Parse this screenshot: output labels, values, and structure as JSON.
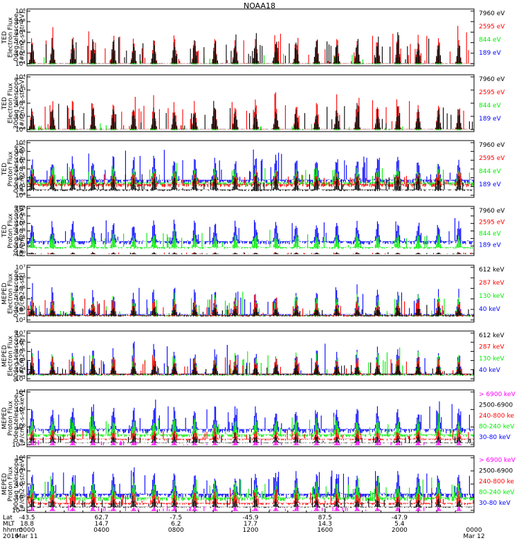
{
  "title": "NOAA18",
  "colors": {
    "black": "#000000",
    "red": "#ff0000",
    "green": "#00ee00",
    "blue": "#0000ff",
    "magenta": "#ff00ff"
  },
  "x_axis": {
    "row_labels": [
      "Lat",
      "MLT",
      "hhmm",
      "2016"
    ],
    "columns": [
      {
        "lat": "-43.5",
        "mlt": "18.8",
        "hhmm": "0000",
        "date": "Mar 11"
      },
      {
        "lat": "62.7",
        "mlt": "14.7",
        "hhmm": "0400",
        "date": ""
      },
      {
        "lat": "-7.5",
        "mlt": "6.2",
        "hhmm": "0800",
        "date": ""
      },
      {
        "lat": "-45.9",
        "mlt": "17.7",
        "hhmm": "1200",
        "date": ""
      },
      {
        "lat": "87.5",
        "mlt": "14.3",
        "hhmm": "1600",
        "date": ""
      },
      {
        "lat": "-47.9",
        "mlt": "5.4",
        "hhmm": "2000",
        "date": ""
      },
      {
        "lat": "",
        "mlt": "",
        "hhmm": "0000",
        "date": "Mar 12"
      }
    ]
  },
  "chart_data": [
    {
      "type": "line",
      "ylabel": [
        "TED",
        "Electron Flux",
        "0deg telescope",
        "[#/cm2-s-str-eV]"
      ],
      "yticks": [
        "10¹",
        "10²",
        "10³",
        "10⁴",
        "10⁵",
        "10⁶"
      ],
      "legend": [
        {
          "text": "7960 eV",
          "color": "#000000"
        },
        {
          "text": "2595 eV",
          "color": "#ff0000"
        },
        {
          "text": "844 eV",
          "color": "#00ee00"
        },
        {
          "text": "189 eV",
          "color": "#0000ff"
        }
      ],
      "series": [
        {
          "name": "7960 eV",
          "base": 0.02,
          "peak": 0.62
        },
        {
          "name": "2595 eV",
          "base": 0.02,
          "peak": 0.72
        },
        {
          "name": "844 eV",
          "base": 0.0,
          "peak": 0.2
        },
        {
          "name": "189 eV",
          "base": 0.0,
          "peak": 0.0
        }
      ]
    },
    {
      "type": "line",
      "ylabel": [
        "TED",
        "Electron Flux",
        "30deg telescope",
        "[#/cm2-s-str-eV]"
      ],
      "yticks": [
        "10⁰",
        "10¹",
        "10²",
        "10³",
        "10⁴"
      ],
      "legend": [
        {
          "text": "7960 eV",
          "color": "#000000"
        },
        {
          "text": "2595 eV",
          "color": "#ff0000"
        },
        {
          "text": "844 eV",
          "color": "#00ee00"
        },
        {
          "text": "189 eV",
          "color": "#0000ff"
        }
      ],
      "series": [
        {
          "name": "7960 eV",
          "base": 0.02,
          "peak": 0.55
        },
        {
          "name": "2595 eV",
          "base": 0.02,
          "peak": 0.72
        },
        {
          "name": "844 eV",
          "base": 0.0,
          "peak": 0.15
        },
        {
          "name": "189 eV",
          "base": 0.0,
          "peak": 0.0
        }
      ]
    },
    {
      "type": "line",
      "ylabel": [
        "TED",
        "Proton Flux",
        "0deg telescope",
        "[#/cm2-s-str-eV]"
      ],
      "yticks": [
        "10⁰",
        "10¹",
        "10²",
        "10³",
        "10⁴",
        "10⁵",
        "10⁶"
      ],
      "legend": [
        {
          "text": "7960 eV",
          "color": "#000000"
        },
        {
          "text": "2595 eV",
          "color": "#ff0000"
        },
        {
          "text": "844 eV",
          "color": "#00ee00"
        },
        {
          "text": "189 eV",
          "color": "#0000ff"
        }
      ],
      "series": [
        {
          "name": "7960 eV",
          "base": 0.12,
          "peak": 0.45
        },
        {
          "name": "2595 eV",
          "base": 0.22,
          "peak": 0.5
        },
        {
          "name": "844 eV",
          "base": 0.25,
          "peak": 0.62
        },
        {
          "name": "189 eV",
          "base": 0.3,
          "peak": 0.9
        }
      ]
    },
    {
      "type": "line",
      "ylabel": [
        "TED",
        "Proton Flux",
        "30deg telescope",
        "[#/cm2-s-str-eV]"
      ],
      "yticks": [
        "10⁰",
        "10¹",
        "10²",
        "10³",
        "10⁴",
        "10⁵",
        "10⁶"
      ],
      "legend": [
        {
          "text": "7960 eV",
          "color": "#000000"
        },
        {
          "text": "2595 eV",
          "color": "#ff0000"
        },
        {
          "text": "844 eV",
          "color": "#00ee00"
        },
        {
          "text": "189 eV",
          "color": "#0000ff"
        }
      ],
      "series": [
        {
          "name": "7960 eV",
          "base": 0.0,
          "peak": 0.05
        },
        {
          "name": "2595 eV",
          "base": 0.0,
          "peak": 0.05
        },
        {
          "name": "844 eV",
          "base": 0.15,
          "peak": 0.55
        },
        {
          "name": "189 eV",
          "base": 0.28,
          "peak": 0.88
        }
      ]
    },
    {
      "type": "line",
      "ylabel": [
        "MEPED",
        "Electron Flux",
        "0deg telescope",
        "[#/cm2-s-str]"
      ],
      "yticks": [
        "10²",
        "10³",
        "10⁴",
        "10⁵",
        "10⁶",
        "10⁷"
      ],
      "legend": [
        {
          "text": "612 keV",
          "color": "#000000"
        },
        {
          "text": "287 keV",
          "color": "#ff0000"
        },
        {
          "text": "130 keV",
          "color": "#00ee00"
        },
        {
          "text": "40 keV",
          "color": "#0000ff"
        }
      ],
      "series": [
        {
          "name": "612 keV",
          "base": 0.1,
          "peak": 0.3
        },
        {
          "name": "287 keV",
          "base": 0.1,
          "peak": 0.48
        },
        {
          "name": "130 keV",
          "base": 0.1,
          "peak": 0.58
        },
        {
          "name": "40 keV",
          "base": 0.12,
          "peak": 0.72
        }
      ]
    },
    {
      "type": "line",
      "ylabel": [
        "MEPED",
        "Electron Flux",
        "90deg telescope",
        "[#/cm2-s-str]"
      ],
      "yticks": [
        "10²",
        "10³",
        "10⁴",
        "10⁵",
        "10⁶",
        "10⁷"
      ],
      "legend": [
        {
          "text": "612 keV",
          "color": "#000000"
        },
        {
          "text": "287 keV",
          "color": "#ff0000"
        },
        {
          "text": "130 keV",
          "color": "#00ee00"
        },
        {
          "text": "40 keV",
          "color": "#0000ff"
        }
      ],
      "series": [
        {
          "name": "612 keV",
          "base": 0.12,
          "peak": 0.4
        },
        {
          "name": "287 keV",
          "base": 0.12,
          "peak": 0.6
        },
        {
          "name": "130 keV",
          "base": 0.1,
          "peak": 0.72
        },
        {
          "name": "40 keV",
          "base": 0.12,
          "peak": 0.85
        }
      ]
    },
    {
      "type": "line",
      "ylabel": [
        "MEPED",
        "Proton Flux",
        "0deg telescope",
        "[#/cm2-s-str-keV]"
      ],
      "yticks": [
        "10⁻²",
        "10⁰",
        "10²",
        "10⁴"
      ],
      "legend": [
        {
          "text": "> 6900 keV",
          "color": "#ff00ff"
        },
        {
          "text": "2500-6900",
          "color": "#000000"
        },
        {
          "text": "240-800 ke",
          "color": "#ff0000"
        },
        {
          "text": "80-240 keV",
          "color": "#00ee00"
        },
        {
          "text": "30-80 keV",
          "color": "#0000ff"
        }
      ],
      "series": [
        {
          "name": "> 6900 keV",
          "base": 0.0,
          "peak": 0.12
        },
        {
          "name": "2500-6900",
          "base": 0.05,
          "peak": 0.25
        },
        {
          "name": "240-800 ke",
          "base": 0.12,
          "peak": 0.35
        },
        {
          "name": "80-240 keV",
          "base": 0.2,
          "peak": 0.6
        },
        {
          "name": "30-80 keV",
          "base": 0.3,
          "peak": 0.85
        }
      ]
    },
    {
      "type": "line",
      "ylabel": [
        "MEPED",
        "Proton Flux",
        "90deg telescope",
        "[#/cm2-s-str-keV]"
      ],
      "yticks": [
        "10⁻²",
        "10⁰",
        "10²",
        "10⁴",
        "10⁶"
      ],
      "legend": [
        {
          "text": "> 6900 keV",
          "color": "#ff00ff"
        },
        {
          "text": "2500-6900",
          "color": "#000000"
        },
        {
          "text": "240-800 ke",
          "color": "#ff0000"
        },
        {
          "text": "80-240 keV",
          "color": "#00ee00"
        },
        {
          "text": "30-80 keV",
          "color": "#0000ff"
        }
      ],
      "series": [
        {
          "name": "> 6900 keV",
          "base": 0.0,
          "peak": 0.12
        },
        {
          "name": "2500-6900",
          "base": 0.08,
          "peak": 0.3
        },
        {
          "name": "240-800 ke",
          "base": 0.15,
          "peak": 0.45
        },
        {
          "name": "80-240 keV",
          "base": 0.25,
          "peak": 0.65
        },
        {
          "name": "30-80 keV",
          "base": 0.32,
          "peak": 0.88
        }
      ]
    }
  ]
}
